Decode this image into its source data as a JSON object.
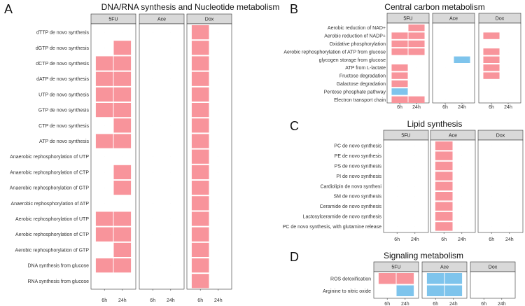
{
  "colors": {
    "up": "#F8949B",
    "down": "#7EC4EC",
    "strip": "#D9D9D9",
    "panel_border": "#333333"
  },
  "chart_data": [
    {
      "type": "heatmap",
      "label": "A",
      "title": "DNA/RNA synthesis and Nucleotide metabolism",
      "facets": [
        "5FU",
        "Ace",
        "Dox"
      ],
      "timepoints": [
        "6h",
        "24h"
      ],
      "rows": [
        "dTTP de novo synthesis",
        "dGTP de novo synthesis",
        "dCTP de novo synthesis",
        "dATP de novo synthesis",
        "UTP de novo synthesis",
        "GTP de novo synthesis",
        "CTP de novo synthesis",
        "ATP de novo synthesis",
        "Anaerobic rephosphorylation of UTP",
        "Anaerobic rephosphorylation of CTP",
        "Anaerobic rephosphorylation of GTP",
        "Anaerobic rephosphorylation of ATP",
        "Aerobic rephosphorylation of UTP",
        "Aerobic rephosphorylation of CTP",
        "Aerobic rephosphorylation of GTP",
        "DNA synthesis from glucose",
        "RNA synthesis from glucose"
      ],
      "cells": {
        "5FU": [
          [
            0,
            0
          ],
          [
            0,
            1
          ],
          [
            1,
            1
          ],
          [
            1,
            1
          ],
          [
            1,
            1
          ],
          [
            1,
            1
          ],
          [
            0,
            1
          ],
          [
            1,
            1
          ],
          [
            0,
            0
          ],
          [
            0,
            1
          ],
          [
            0,
            1
          ],
          [
            0,
            0
          ],
          [
            1,
            1
          ],
          [
            1,
            1
          ],
          [
            0,
            1
          ],
          [
            1,
            1
          ],
          [
            0,
            0
          ]
        ],
        "Ace": [
          [
            0,
            0
          ],
          [
            0,
            0
          ],
          [
            0,
            0
          ],
          [
            0,
            0
          ],
          [
            0,
            0
          ],
          [
            0,
            0
          ],
          [
            0,
            0
          ],
          [
            0,
            0
          ],
          [
            0,
            0
          ],
          [
            0,
            0
          ],
          [
            0,
            0
          ],
          [
            0,
            0
          ],
          [
            0,
            0
          ],
          [
            0,
            0
          ],
          [
            0,
            0
          ],
          [
            0,
            0
          ],
          [
            0,
            0
          ]
        ],
        "Dox": [
          [
            1,
            0
          ],
          [
            1,
            0
          ],
          [
            1,
            0
          ],
          [
            1,
            0
          ],
          [
            1,
            0
          ],
          [
            1,
            0
          ],
          [
            1,
            0
          ],
          [
            1,
            0
          ],
          [
            1,
            0
          ],
          [
            1,
            0
          ],
          [
            1,
            0
          ],
          [
            1,
            0
          ],
          [
            1,
            0
          ],
          [
            1,
            0
          ],
          [
            1,
            0
          ],
          [
            1,
            0
          ],
          [
            1,
            0
          ]
        ]
      }
    },
    {
      "type": "heatmap",
      "label": "B",
      "title": "Central carbon metabolism",
      "facets": [
        "5FU",
        "Ace",
        "Dox"
      ],
      "timepoints": [
        "6h",
        "24h"
      ],
      "rows": [
        "Aerobic reduction of NAD+",
        "Aerobic reduction of NADP+",
        "Oxidative phosphorylation",
        "Aerobic rephosphorylation of ATP from glucose",
        "glycogen storage from glucose",
        "ATP from L-lactate",
        "Fructose degradation",
        "Galactose degradation",
        "Pentose phosphate pathway",
        "Electron transport chain"
      ],
      "cells": {
        "5FU": [
          [
            0,
            1
          ],
          [
            1,
            1
          ],
          [
            1,
            1
          ],
          [
            1,
            1
          ],
          [
            0,
            0
          ],
          [
            1,
            0
          ],
          [
            1,
            0
          ],
          [
            1,
            0
          ],
          [
            -1,
            0
          ],
          [
            1,
            1
          ]
        ],
        "Ace": [
          [
            0,
            0
          ],
          [
            0,
            0
          ],
          [
            0,
            0
          ],
          [
            0,
            0
          ],
          [
            0,
            -1
          ],
          [
            0,
            0
          ],
          [
            0,
            0
          ],
          [
            0,
            0
          ],
          [
            0,
            0
          ],
          [
            0,
            0
          ]
        ],
        "Dox": [
          [
            0,
            0
          ],
          [
            1,
            0
          ],
          [
            0,
            0
          ],
          [
            1,
            0
          ],
          [
            1,
            0
          ],
          [
            1,
            0
          ],
          [
            1,
            0
          ],
          [
            0,
            0
          ],
          [
            0,
            0
          ],
          [
            0,
            0
          ]
        ]
      }
    },
    {
      "type": "heatmap",
      "label": "C",
      "title": "Lipid synthesis",
      "facets": [
        "5FU",
        "Ace",
        "Dox"
      ],
      "timepoints": [
        "6h",
        "24h"
      ],
      "rows": [
        "PC de novo synthesis",
        "PE de novo synthesis",
        "PS de novo synthesis",
        "PI de novo synthesis",
        "Cardiolipin de novo synthesi",
        "SM de novo synthesis",
        "Ceramide de novo synthesis",
        "Lactosylceramide de novo synthesis",
        "PC de novo synthesis, with glutamine release"
      ],
      "cells": {
        "5FU": [
          [
            0,
            0
          ],
          [
            0,
            0
          ],
          [
            0,
            0
          ],
          [
            0,
            0
          ],
          [
            0,
            0
          ],
          [
            0,
            0
          ],
          [
            0,
            0
          ],
          [
            0,
            0
          ],
          [
            0,
            0
          ]
        ],
        "Ace": [
          [
            1,
            0
          ],
          [
            1,
            0
          ],
          [
            1,
            0
          ],
          [
            1,
            0
          ],
          [
            1,
            0
          ],
          [
            1,
            0
          ],
          [
            1,
            0
          ],
          [
            1,
            0
          ],
          [
            1,
            0
          ]
        ],
        "Dox": [
          [
            0,
            0
          ],
          [
            0,
            0
          ],
          [
            0,
            0
          ],
          [
            0,
            0
          ],
          [
            0,
            0
          ],
          [
            0,
            0
          ],
          [
            0,
            0
          ],
          [
            0,
            0
          ],
          [
            0,
            0
          ]
        ]
      }
    },
    {
      "type": "heatmap",
      "label": "D",
      "title": "Signaling metabolism",
      "facets": [
        "5FU",
        "Ace",
        "Dox"
      ],
      "timepoints": [
        "6h",
        "24h"
      ],
      "rows": [
        "ROS detoxification",
        "Arginine to nitric oxide"
      ],
      "cells": {
        "5FU": [
          [
            1,
            1
          ],
          [
            0,
            -1
          ]
        ],
        "Ace": [
          [
            -1,
            -1
          ],
          [
            -1,
            -1
          ]
        ],
        "Dox": [
          [
            0,
            0
          ],
          [
            0,
            0
          ]
        ]
      }
    }
  ]
}
